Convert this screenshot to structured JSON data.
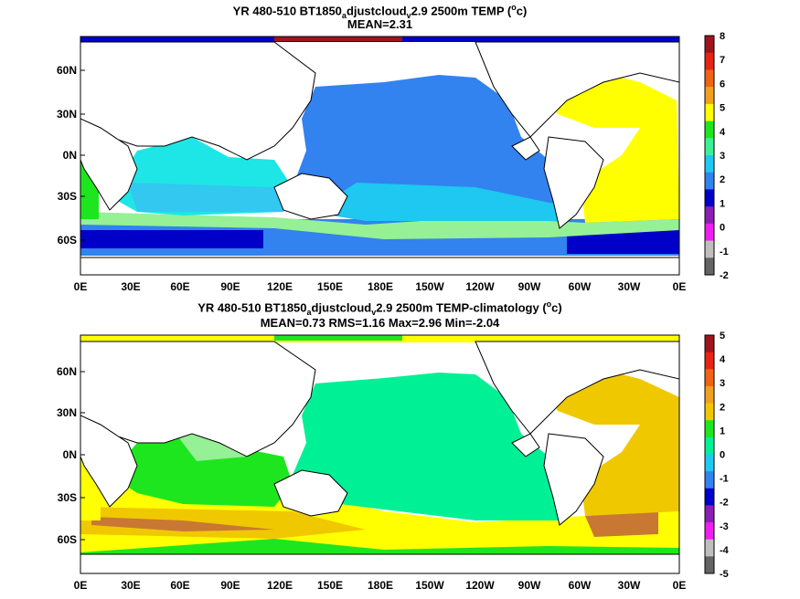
{
  "panels": [
    {
      "title_pre": "YR 480-510 BT1850",
      "title_sub1": "a",
      "title_mid": "djustcloud",
      "title_sub2": "v",
      "title_post": "2.9 2500m TEMP (",
      "title_sup": "o",
      "title_end": "c)",
      "stats": "MEAN=2.31",
      "colorbar_labels": [
        "8",
        "7",
        "6",
        "5",
        "4",
        "3",
        "2",
        "1",
        "0",
        "-1",
        "-2"
      ],
      "colorbar_colors": [
        "#a0141e",
        "#e62314",
        "#f06414",
        "#f0a01e",
        "#ffff00",
        "#1ee61e",
        "#3cf096",
        "#1ec8f0",
        "#3282f0",
        "#0000c8",
        "#8c1eb4",
        "#f01ef0",
        "#bebebe",
        "#646464"
      ],
      "fields": [
        {
          "name": "indian-ocean-warm",
          "color": "#1ee6e6"
        },
        {
          "name": "pacific-main",
          "color": "#3282f0"
        },
        {
          "name": "atlantic-main",
          "color": "#ffff00"
        },
        {
          "name": "southern-band-1",
          "color": "#96f096"
        },
        {
          "name": "southern-band-2",
          "color": "#32c8f0"
        },
        {
          "name": "southern-band-3",
          "color": "#0000c8"
        }
      ]
    },
    {
      "title_pre": "YR 480-510 BT1850",
      "title_sub1": "a",
      "title_mid": "djustcloud",
      "title_sub2": "v",
      "title_post": "2.9 2500m TEMP-climatology (",
      "title_sup": "o",
      "title_end": "c)",
      "stats": "MEAN=0.73   RMS=1.16   Max=2.96   Min=-2.04",
      "colorbar_labels": [
        "5",
        "4",
        "3",
        "2",
        "1",
        "0",
        "-1",
        "-2",
        "-3",
        "-4",
        "-5"
      ],
      "colorbar_colors": [
        "#a0141e",
        "#e62314",
        "#f06414",
        "#f0a01e",
        "#f0c800",
        "#1ee61e",
        "#00f096",
        "#1ec8f0",
        "#3282f0",
        "#0000c8",
        "#8c1eb4",
        "#f01ef0",
        "#bebebe",
        "#646464"
      ],
      "fields": [
        {
          "name": "pacific-main",
          "color": "#00f096"
        },
        {
          "name": "atlantic-main",
          "color": "#f0c800"
        },
        {
          "name": "indian-ocean",
          "color": "#1ee61e"
        },
        {
          "name": "southern-band-yellow",
          "color": "#ffff00"
        },
        {
          "name": "southern-band-brown",
          "color": "#c87832"
        }
      ]
    }
  ],
  "lat_labels": [
    "60N",
    "30N",
    "0N",
    "30S",
    "60S"
  ],
  "lon_labels": [
    "0E",
    "30E",
    "60E",
    "90E",
    "120E",
    "150E",
    "180E",
    "150W",
    "120W",
    "90W",
    "60W",
    "30W",
    "0E"
  ]
}
